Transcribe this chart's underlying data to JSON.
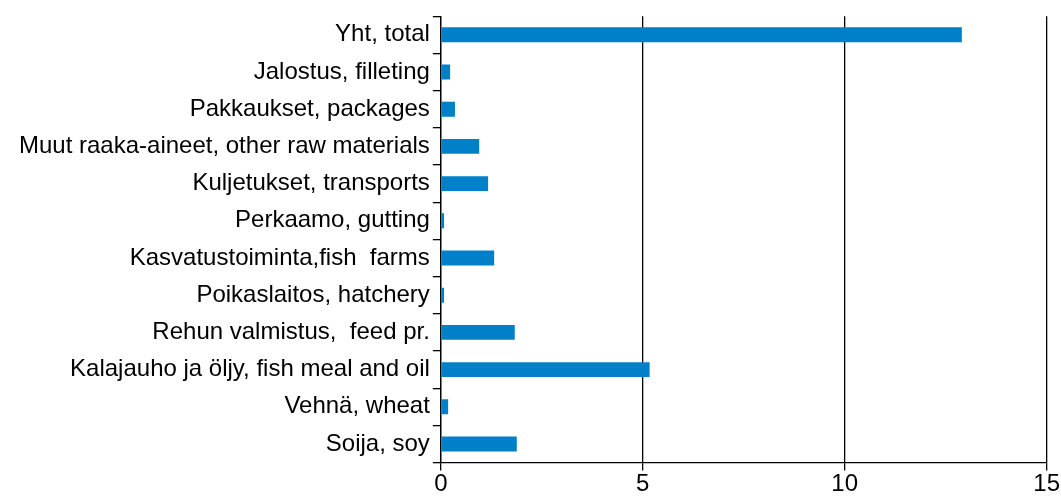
{
  "chart_data": {
    "type": "bar",
    "orientation": "horizontal",
    "categories": [
      "Yht, total",
      "Jalostus, filleting",
      "Pakkaukset, packages",
      "Muut raaka-aineet, other raw materials",
      "Kuljetukset, transports",
      "Perkaamo, gutting",
      "Kasvatustoiminta,fish  farms",
      "Poikaslaitos, hatchery",
      "Rehun valmistus,  feed pr.",
      "Kalajauho ja öljy, fish meal and oil",
      "Vehnä, wheat",
      "Soija, soy"
    ],
    "values": [
      12.9,
      0.23,
      0.35,
      0.95,
      1.17,
      0.08,
      1.32,
      0.08,
      1.83,
      5.17,
      0.18,
      1.88
    ],
    "color": "#0080c8",
    "xlim": [
      0,
      15
    ],
    "xticks": [
      0,
      5,
      10,
      15
    ],
    "grid": "x",
    "legend": false
  }
}
